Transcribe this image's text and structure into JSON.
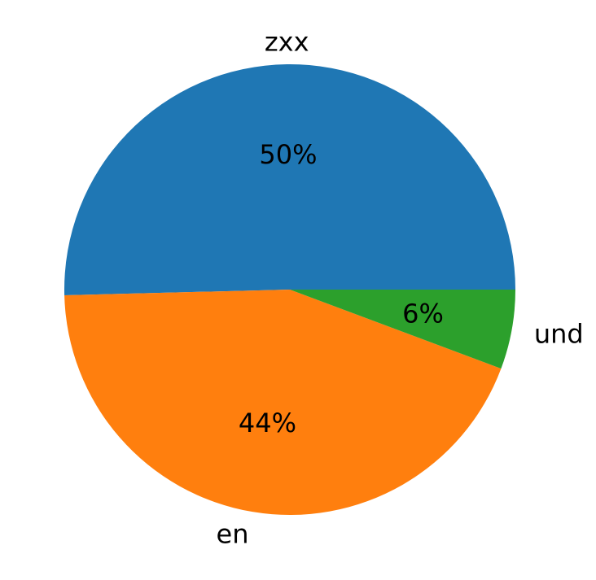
{
  "chart_data": {
    "type": "pie",
    "start_angle_deg": 0,
    "direction": "counterclockwise",
    "slices": [
      {
        "label": "zxx",
        "value": 50.4,
        "display": "50%",
        "color": "#1f77b4"
      },
      {
        "label": "en",
        "value": 43.9,
        "display": "44%",
        "color": "#ff7f0e"
      },
      {
        "label": "und",
        "value": 5.7,
        "display": "6%",
        "color": "#2ca02c"
      }
    ]
  }
}
